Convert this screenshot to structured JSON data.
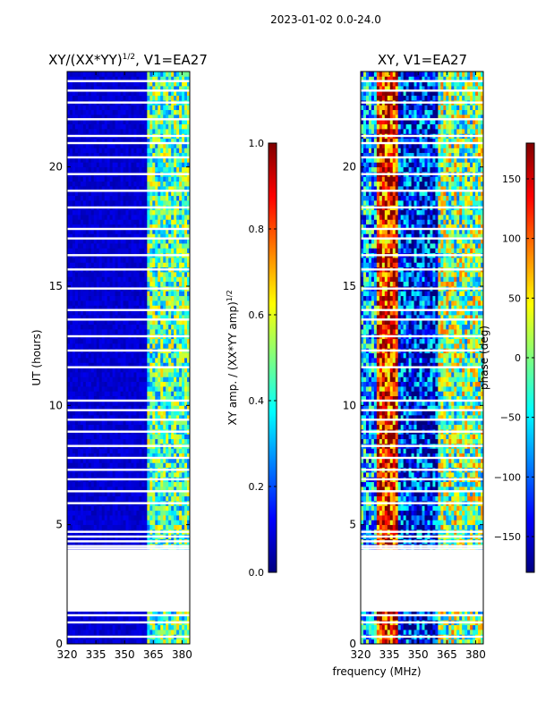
{
  "suptitle": "2023-01-02 0.0-24.0",
  "xlabel": "frequency (MHz)",
  "colors": {
    "jet": [
      "#00007f",
      "#0000ff",
      "#007fff",
      "#00ffff",
      "#7fff7f",
      "#ffff00",
      "#ff7f00",
      "#ff0000",
      "#7f0000"
    ],
    "frame": "#000000",
    "gap": "#ffffff"
  },
  "gaps_hours": [
    0.3,
    0.9,
    1.2,
    1.4,
    3.9,
    4.0,
    4.1,
    4.3,
    4.5,
    4.7,
    5.9,
    6.4,
    6.9,
    7.3,
    7.8,
    8.3,
    8.9,
    9.4,
    9.8,
    10.2,
    11.6,
    12.3,
    12.9,
    13.6,
    14.0,
    14.9,
    15.7,
    16.3,
    17.0,
    17.4,
    18.3,
    19.0,
    19.7,
    20.4,
    21.0,
    21.3,
    22.0,
    22.7,
    23.2,
    23.6
  ],
  "chart_data": [
    {
      "type": "heatmap",
      "title": "XY/(XX*YY)^{1/2}, V1=EA27",
      "title_main": "XY/(XX*YY)",
      "title_exp": "1/2",
      "title_tail": ", V1=EA27",
      "xlabel": "frequency (MHz)",
      "ylabel": "UT (hours)",
      "xlim": [
        320,
        384
      ],
      "ylim": [
        0,
        24
      ],
      "xticks": [
        320,
        335,
        350,
        365,
        380
      ],
      "yticks": [
        0,
        5,
        10,
        15,
        20
      ],
      "missing_hours": [
        1.4,
        3.9
      ],
      "colorbar": {
        "label": "XY amp. / (XX*YY amp)",
        "label_exp": "1/2",
        "range": [
          0.0,
          1.0
        ],
        "ticks": [
          0.0,
          0.2,
          0.4,
          0.6,
          0.8,
          1.0
        ],
        "tick_labels": [
          "0.0",
          "0.2",
          "0.4",
          "0.6",
          "0.8",
          "1.0"
        ]
      },
      "bands": [
        {
          "from": 320,
          "to": 362,
          "level": 0.08
        },
        {
          "from": 362,
          "to": 384,
          "level": 0.45
        }
      ]
    },
    {
      "type": "heatmap",
      "title": "XY, V1=EA27",
      "xlabel": "frequency (MHz)",
      "ylabel": "",
      "xlim": [
        320,
        384
      ],
      "ylim": [
        0,
        24
      ],
      "xticks": [
        320,
        335,
        350,
        365,
        380
      ],
      "yticks": [
        0,
        5,
        10,
        15,
        20
      ],
      "missing_hours": [
        1.4,
        3.9
      ],
      "colorbar": {
        "label": "phase (deg)",
        "range": [
          -180,
          180
        ],
        "ticks": [
          -150,
          -100,
          -50,
          0,
          50,
          100,
          150
        ],
        "tick_labels": [
          "−150",
          "−100",
          "−50",
          "0",
          "50",
          "100",
          "150"
        ]
      },
      "bands": [
        {
          "from": 320,
          "to": 328,
          "level": 0.3
        },
        {
          "from": 328,
          "to": 340,
          "level": 0.85
        },
        {
          "from": 340,
          "to": 360,
          "level": 0.15
        },
        {
          "from": 360,
          "to": 384,
          "level": 0.5
        }
      ]
    }
  ]
}
